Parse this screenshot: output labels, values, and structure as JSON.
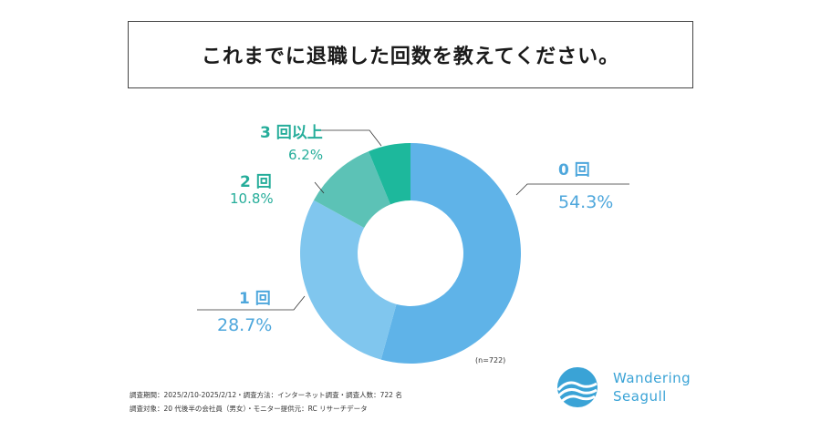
{
  "title": "これまでに退職した回数を教えてください。",
  "sample_note": "(n=722)",
  "footnotes": {
    "line1": "調査期間：2025/2/10-2025/2/12・調査方法：インターネット調査・調査人数：722 名",
    "line2": "調査対象：20 代後半の会社員（男女）・モニター提供元：RC リサーチデータ"
  },
  "logo": {
    "line1": "Wandering",
    "line2": "Seagull",
    "color": "#3aa3d6",
    "icon": "seagull-wave-logo"
  },
  "chart_data": {
    "type": "pie",
    "donut": true,
    "title": "これまでに退職した回数を教えてください。",
    "slices": [
      {
        "label": "0 回",
        "value": 54.3,
        "display": "54.3%",
        "color": "#5fb3e8"
      },
      {
        "label": "1 回",
        "value": 28.7,
        "display": "28.7%",
        "color": "#80c6ee"
      },
      {
        "label": "2 回",
        "value": 10.8,
        "display": "10.8%",
        "color": "#5cc2b6"
      },
      {
        "label": "3 回以上",
        "value": 6.2,
        "display": "6.2%",
        "color": "#1db89c"
      }
    ],
    "label_colors": {
      "blue": "#4ea7dc",
      "teal": "#25ad9a"
    }
  }
}
